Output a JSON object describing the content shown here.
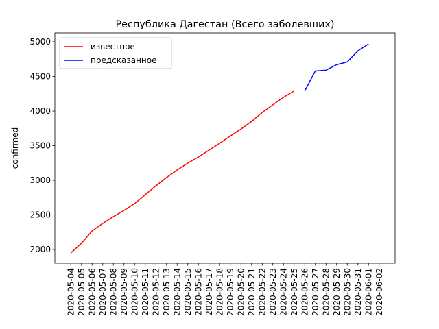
{
  "chart_data": {
    "type": "line",
    "title": "Республика Дагестан (Всего заболевших)",
    "y_label": "confirmed",
    "x": [
      "2020-05-04",
      "2020-05-05",
      "2020-05-06",
      "2020-05-07",
      "2020-05-08",
      "2020-05-09",
      "2020-05-10",
      "2020-05-11",
      "2020-05-12",
      "2020-05-13",
      "2020-05-14",
      "2020-05-15",
      "2020-05-16",
      "2020-05-17",
      "2020-05-18",
      "2020-05-19",
      "2020-05-20",
      "2020-05-21",
      "2020-05-22",
      "2020-05-23",
      "2020-05-24",
      "2020-05-25",
      "2020-05-26",
      "2020-05-27",
      "2020-05-28",
      "2020-05-29",
      "2020-05-30",
      "2020-05-31",
      "2020-06-01",
      "2020-06-02"
    ],
    "series": [
      {
        "name": "известное",
        "color": "#ff0000",
        "values": [
          1950,
          2090,
          2267,
          2376,
          2475,
          2564,
          2663,
          2792,
          2921,
          3040,
          3149,
          3248,
          3337,
          3436,
          3535,
          3640,
          3740,
          3850,
          3980,
          4090,
          4200,
          4290,
          null,
          null,
          null,
          null,
          null,
          null,
          null,
          null
        ]
      },
      {
        "name": "предсказанное",
        "color": "#0000ff",
        "values": [
          null,
          null,
          null,
          null,
          null,
          null,
          null,
          null,
          null,
          null,
          null,
          null,
          null,
          null,
          null,
          null,
          null,
          null,
          null,
          null,
          null,
          null,
          4290,
          4580,
          4590,
          4670,
          4710,
          4870,
          4970,
          null
        ]
      }
    ],
    "ylim": [
      1802,
      5129
    ],
    "yticks": [
      2000,
      2500,
      3000,
      3500,
      4000,
      4500,
      5000
    ],
    "legend": "upper left",
    "grid": false
  }
}
